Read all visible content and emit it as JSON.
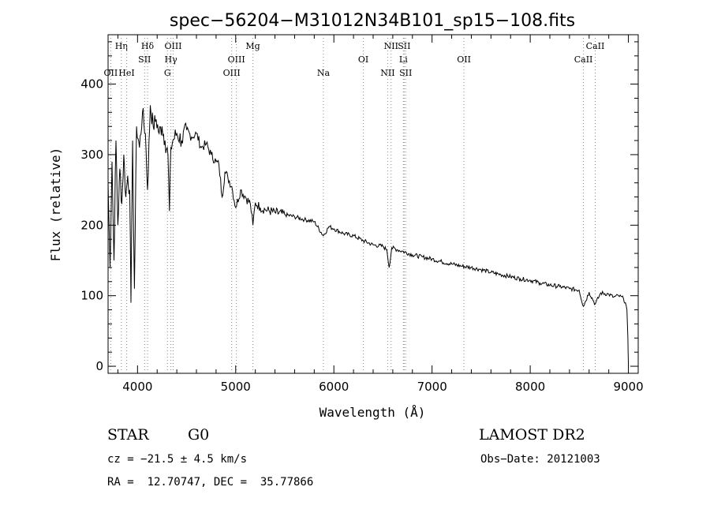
{
  "chart_data": {
    "type": "line",
    "title": "spec−56204−M31012N34B101_sp15−108.fits",
    "xlabel": "Wavelength (Å)",
    "ylabel": "Flux (relative)",
    "xlim": [
      3700,
      9100
    ],
    "ylim": [
      -10,
      470
    ],
    "x_ticks": [
      4000,
      5000,
      6000,
      7000,
      8000,
      9000
    ],
    "y_ticks": [
      0,
      100,
      200,
      300,
      400
    ],
    "line_color": "#000000",
    "marker_color": "#888888",
    "series": [
      {
        "x": [
          3700,
          3720,
          3740,
          3760,
          3780,
          3800,
          3820,
          3840,
          3860,
          3880,
          3900,
          3920,
          3933,
          3950,
          3968,
          3990,
          4020,
          4050,
          4080,
          4102,
          4130,
          4160,
          4190,
          4220,
          4250,
          4280,
          4310,
          4325,
          4340,
          4360,
          4400,
          4450,
          4500,
          4550,
          4600,
          4650,
          4700,
          4750,
          4800,
          4830,
          4861,
          4890,
          4920,
          4960,
          5000,
          5050,
          5100,
          5150,
          5175,
          5200,
          5250,
          5300,
          5400,
          5500,
          5600,
          5700,
          5800,
          5893,
          5950,
          6000,
          6100,
          6200,
          6300,
          6400,
          6500,
          6540,
          6563,
          6590,
          6650,
          6700,
          6800,
          6900,
          7000,
          7100,
          7200,
          7300,
          7400,
          7500,
          7600,
          7700,
          7800,
          7900,
          8000,
          8100,
          8200,
          8300,
          8400,
          8498,
          8542,
          8600,
          8662,
          8720,
          8800,
          8850,
          8900,
          8950,
          8970,
          8985,
          8995,
          9000
        ],
        "y": [
          260,
          140,
          290,
          150,
          320,
          200,
          280,
          230,
          300,
          240,
          270,
          250,
          90,
          320,
          110,
          340,
          310,
          360,
          330,
          250,
          370,
          340,
          350,
          330,
          340,
          320,
          300,
          220,
          310,
          320,
          330,
          320,
          335,
          325,
          330,
          310,
          315,
          300,
          290,
          285,
          240,
          275,
          268,
          255,
          225,
          250,
          240,
          230,
          200,
          232,
          225,
          222,
          218,
          215,
          212,
          208,
          205,
          185,
          198,
          195,
          188,
          185,
          178,
          172,
          170,
          165,
          140,
          168,
          165,
          163,
          158,
          155,
          152,
          148,
          145,
          142,
          140,
          137,
          133,
          130,
          127,
          124,
          122,
          118,
          115,
          113,
          110,
          108,
          85,
          105,
          88,
          104,
          102,
          98,
          100,
          96,
          90,
          80,
          40,
          0
        ]
      }
    ],
    "line_markers": [
      {
        "label": "Hη",
        "x": 3835,
        "row": 1
      },
      {
        "label": "OII",
        "x": 3727,
        "row": 3
      },
      {
        "label": "HeI",
        "x": 3889,
        "row": 3
      },
      {
        "label": "Hδ",
        "x": 4102,
        "row": 1
      },
      {
        "label": "SII",
        "x": 4072,
        "row": 2
      },
      {
        "label": "OIII",
        "x": 4363,
        "row": 1
      },
      {
        "label": "Hγ",
        "x": 4340,
        "row": 2
      },
      {
        "label": "G",
        "x": 4305,
        "row": 3
      },
      {
        "label": "OIII",
        "x": 5007,
        "row": 2
      },
      {
        "label": "OIII",
        "x": 4959,
        "row": 3
      },
      {
        "label": "Mg",
        "x": 5175,
        "row": 1
      },
      {
        "label": "Na",
        "x": 5893,
        "row": 3
      },
      {
        "label": "OI",
        "x": 6300,
        "row": 2
      },
      {
        "label": "NII",
        "x": 6583,
        "row": 1
      },
      {
        "label": "SII",
        "x": 6716,
        "row": 1
      },
      {
        "label": "Li",
        "x": 6708,
        "row": 2
      },
      {
        "label": "NII",
        "x": 6548,
        "row": 3
      },
      {
        "label": "SII",
        "x": 6731,
        "row": 3
      },
      {
        "label": "OII",
        "x": 7325,
        "row": 2
      },
      {
        "label": "CaII",
        "x": 8662,
        "row": 1
      },
      {
        "label": "CaII",
        "x": 8542,
        "row": 2
      }
    ]
  },
  "info": {
    "object_class": "STAR",
    "subclass": "G0",
    "survey": "LAMOST DR2",
    "cz": "cz = −21.5 ± 4.5 km/s",
    "obs_date": "Obs−Date: 20121003",
    "coords": "RA =  12.70747, DEC =  35.77866"
  }
}
